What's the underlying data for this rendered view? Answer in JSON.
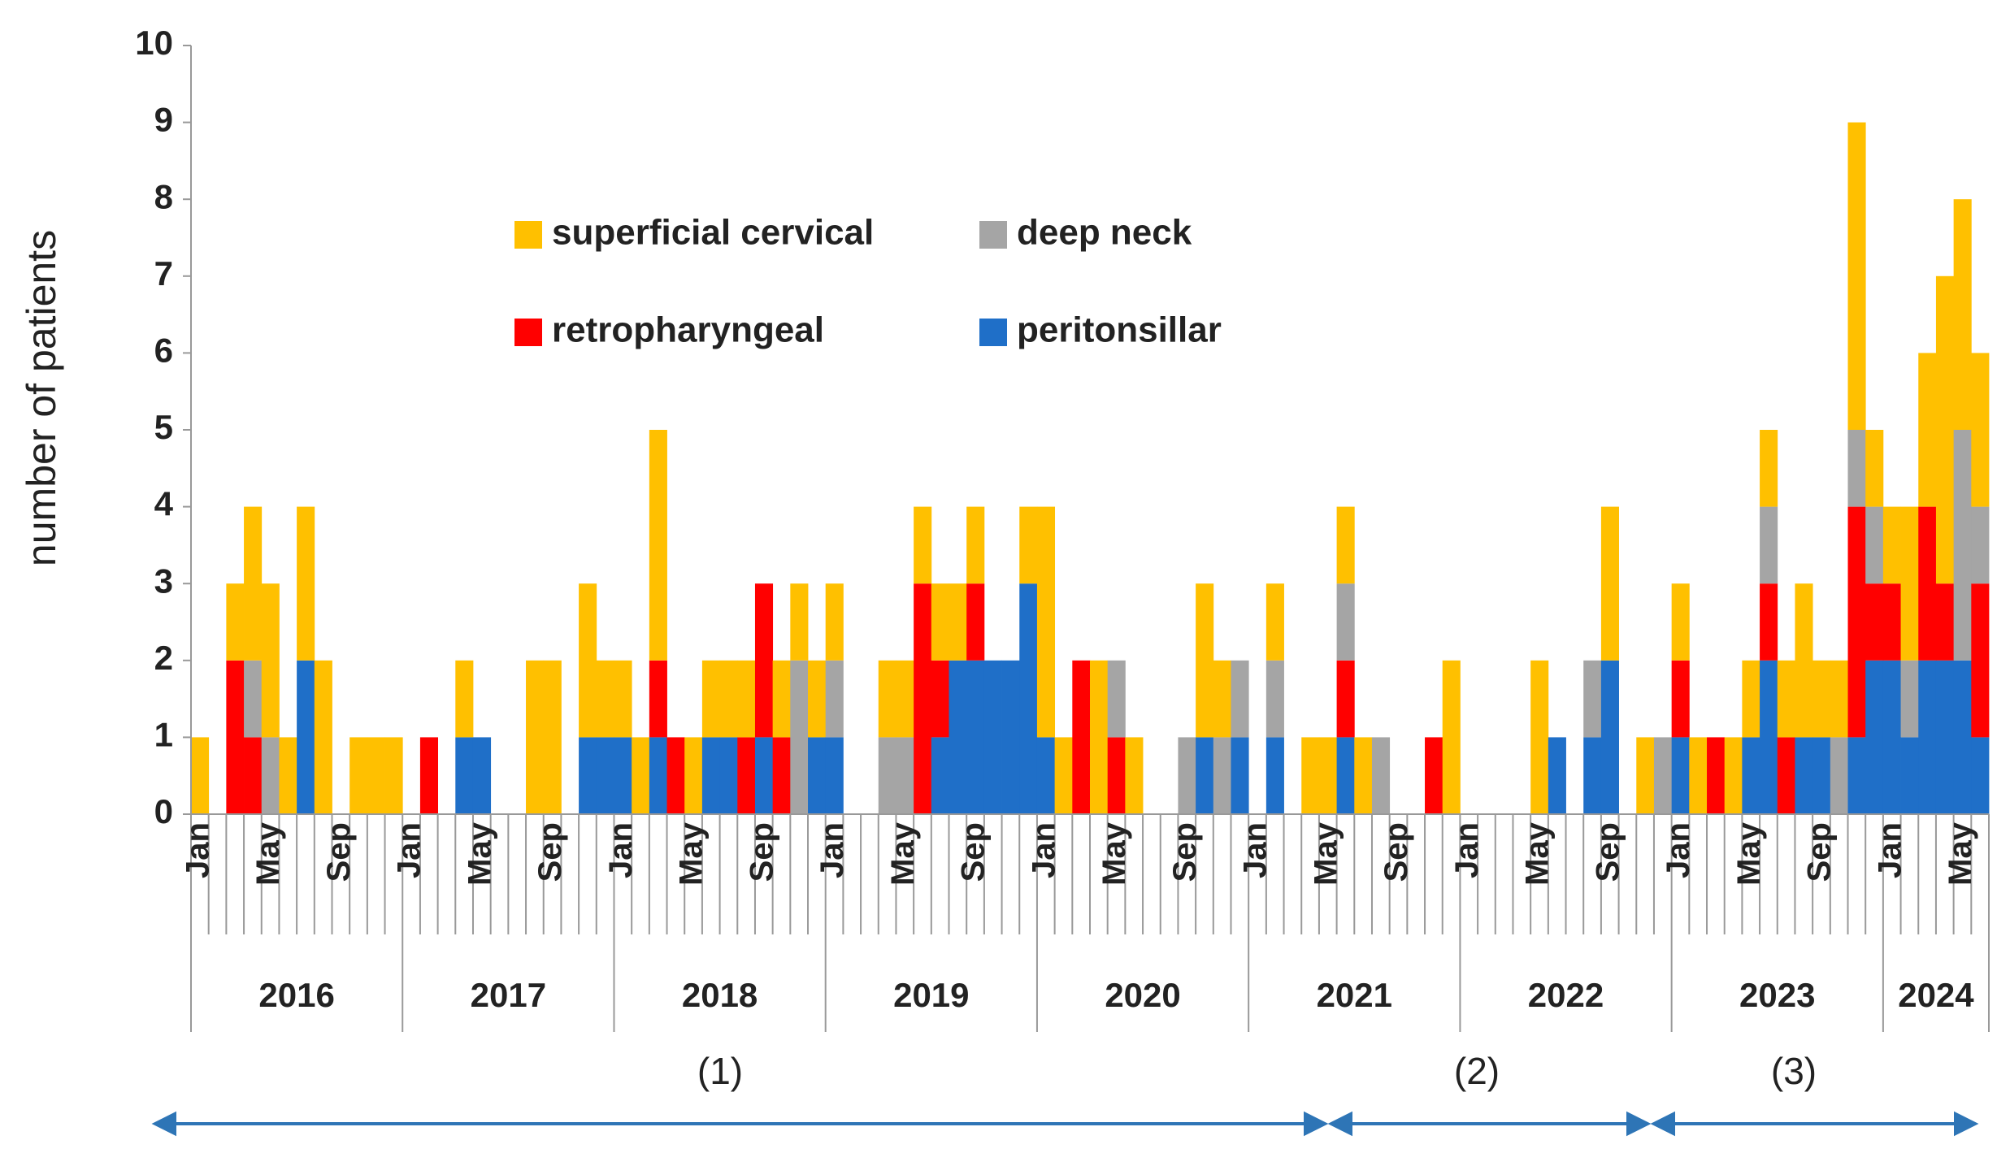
{
  "chart_data": {
    "type": "stacked_bar",
    "y_label": "number of patients",
    "ylim": [
      0,
      10
    ],
    "yticks": [
      0,
      1,
      2,
      3,
      4,
      5,
      6,
      7,
      8,
      9,
      10
    ],
    "categories": [
      "Jan",
      null,
      null,
      null,
      "May",
      null,
      null,
      null,
      "Sep",
      null,
      null,
      null,
      "Jan",
      null,
      null,
      null,
      "May",
      null,
      null,
      null,
      "Sep",
      null,
      null,
      null,
      "Jan",
      null,
      null,
      null,
      "May",
      null,
      null,
      null,
      "Sep",
      null,
      null,
      null,
      "Jan",
      null,
      null,
      null,
      "May",
      null,
      null,
      null,
      "Sep",
      null,
      null,
      null,
      "Jan",
      null,
      null,
      null,
      "May",
      null,
      null,
      null,
      "Sep",
      null,
      null,
      null,
      "Jan",
      null,
      null,
      null,
      "May",
      null,
      null,
      null,
      "Sep",
      null,
      null,
      null,
      "Jan",
      null,
      null,
      null,
      "May",
      null,
      null,
      null,
      "Sep",
      null,
      null,
      null,
      "Jan",
      null,
      null,
      null,
      "May",
      null,
      null,
      null,
      "Sep",
      null,
      null,
      null,
      "Jan",
      null,
      null,
      null,
      "May",
      null
    ],
    "years": [
      "2016",
      "2017",
      "2018",
      "2019",
      "2020",
      "2021",
      "2022",
      "2023",
      "2024"
    ],
    "periods": [
      "(1)",
      "(2)",
      "(3)"
    ],
    "series": [
      {
        "name": "superficial cervical",
        "color": "#FFC000",
        "values": [
          1,
          0,
          1,
          2,
          2,
          1,
          2,
          2,
          0,
          1,
          1,
          1,
          0,
          0,
          0,
          1,
          0,
          0,
          0,
          2,
          2,
          0,
          2,
          1,
          1,
          1,
          3,
          0,
          1,
          1,
          1,
          1,
          0,
          1,
          1,
          1,
          1,
          0,
          0,
          1,
          1,
          1,
          1,
          1,
          1,
          0,
          0,
          1,
          3,
          1,
          0,
          2,
          0,
          1,
          0,
          0,
          0,
          2,
          1,
          0,
          0,
          1,
          0,
          1,
          1,
          1,
          1,
          0,
          0,
          0,
          0,
          2,
          0,
          0,
          0,
          0,
          2,
          0,
          0,
          0,
          2,
          0,
          1,
          0,
          1,
          1,
          0,
          1,
          1,
          1,
          1,
          2,
          1,
          1,
          4,
          1,
          1,
          2,
          2,
          4,
          3,
          2
        ]
      },
      {
        "name": "deep neck",
        "color": "#A5A5A5",
        "values": [
          0,
          0,
          0,
          1,
          1,
          0,
          0,
          0,
          0,
          0,
          0,
          0,
          0,
          0,
          0,
          0,
          0,
          0,
          0,
          0,
          0,
          0,
          0,
          0,
          0,
          0,
          0,
          0,
          0,
          0,
          0,
          0,
          0,
          0,
          2,
          0,
          1,
          0,
          0,
          1,
          1,
          0,
          0,
          0,
          0,
          0,
          0,
          0,
          0,
          0,
          0,
          0,
          1,
          0,
          0,
          0,
          1,
          0,
          1,
          1,
          0,
          1,
          0,
          0,
          0,
          1,
          0,
          1,
          0,
          0,
          0,
          0,
          0,
          0,
          0,
          0,
          0,
          0,
          0,
          1,
          0,
          0,
          0,
          1,
          0,
          0,
          0,
          0,
          0,
          1,
          0,
          0,
          0,
          1,
          1,
          1,
          0,
          1,
          0,
          0,
          3,
          1
        ]
      },
      {
        "name": "retropharyngeal",
        "color": "#FF0000",
        "values": [
          0,
          0,
          2,
          1,
          0,
          0,
          0,
          0,
          0,
          0,
          0,
          0,
          0,
          1,
          0,
          0,
          0,
          0,
          0,
          0,
          0,
          0,
          0,
          0,
          0,
          0,
          1,
          1,
          0,
          0,
          0,
          1,
          2,
          1,
          0,
          0,
          0,
          0,
          0,
          0,
          0,
          3,
          1,
          0,
          1,
          0,
          0,
          0,
          0,
          0,
          2,
          0,
          1,
          0,
          0,
          0,
          0,
          0,
          0,
          0,
          0,
          0,
          0,
          0,
          0,
          1,
          0,
          0,
          0,
          0,
          1,
          0,
          0,
          0,
          0,
          0,
          0,
          0,
          0,
          0,
          0,
          0,
          0,
          0,
          1,
          0,
          1,
          0,
          0,
          1,
          1,
          0,
          0,
          0,
          3,
          1,
          1,
          0,
          2,
          1,
          0,
          2
        ]
      },
      {
        "name": "peritonsillar",
        "color": "#1F6FC8",
        "values": [
          0,
          0,
          0,
          0,
          0,
          0,
          2,
          0,
          0,
          0,
          0,
          0,
          0,
          0,
          0,
          1,
          1,
          0,
          0,
          0,
          0,
          0,
          1,
          1,
          1,
          0,
          1,
          0,
          0,
          1,
          1,
          0,
          1,
          0,
          0,
          1,
          1,
          0,
          0,
          0,
          0,
          0,
          1,
          2,
          2,
          2,
          2,
          3,
          1,
          0,
          0,
          0,
          0,
          0,
          0,
          0,
          0,
          1,
          0,
          1,
          0,
          1,
          0,
          0,
          0,
          1,
          0,
          0,
          0,
          0,
          0,
          0,
          0,
          0,
          0,
          0,
          0,
          1,
          0,
          1,
          2,
          0,
          0,
          0,
          1,
          0,
          0,
          0,
          1,
          2,
          0,
          1,
          1,
          0,
          1,
          2,
          2,
          1,
          2,
          2,
          2,
          1
        ]
      }
    ]
  }
}
